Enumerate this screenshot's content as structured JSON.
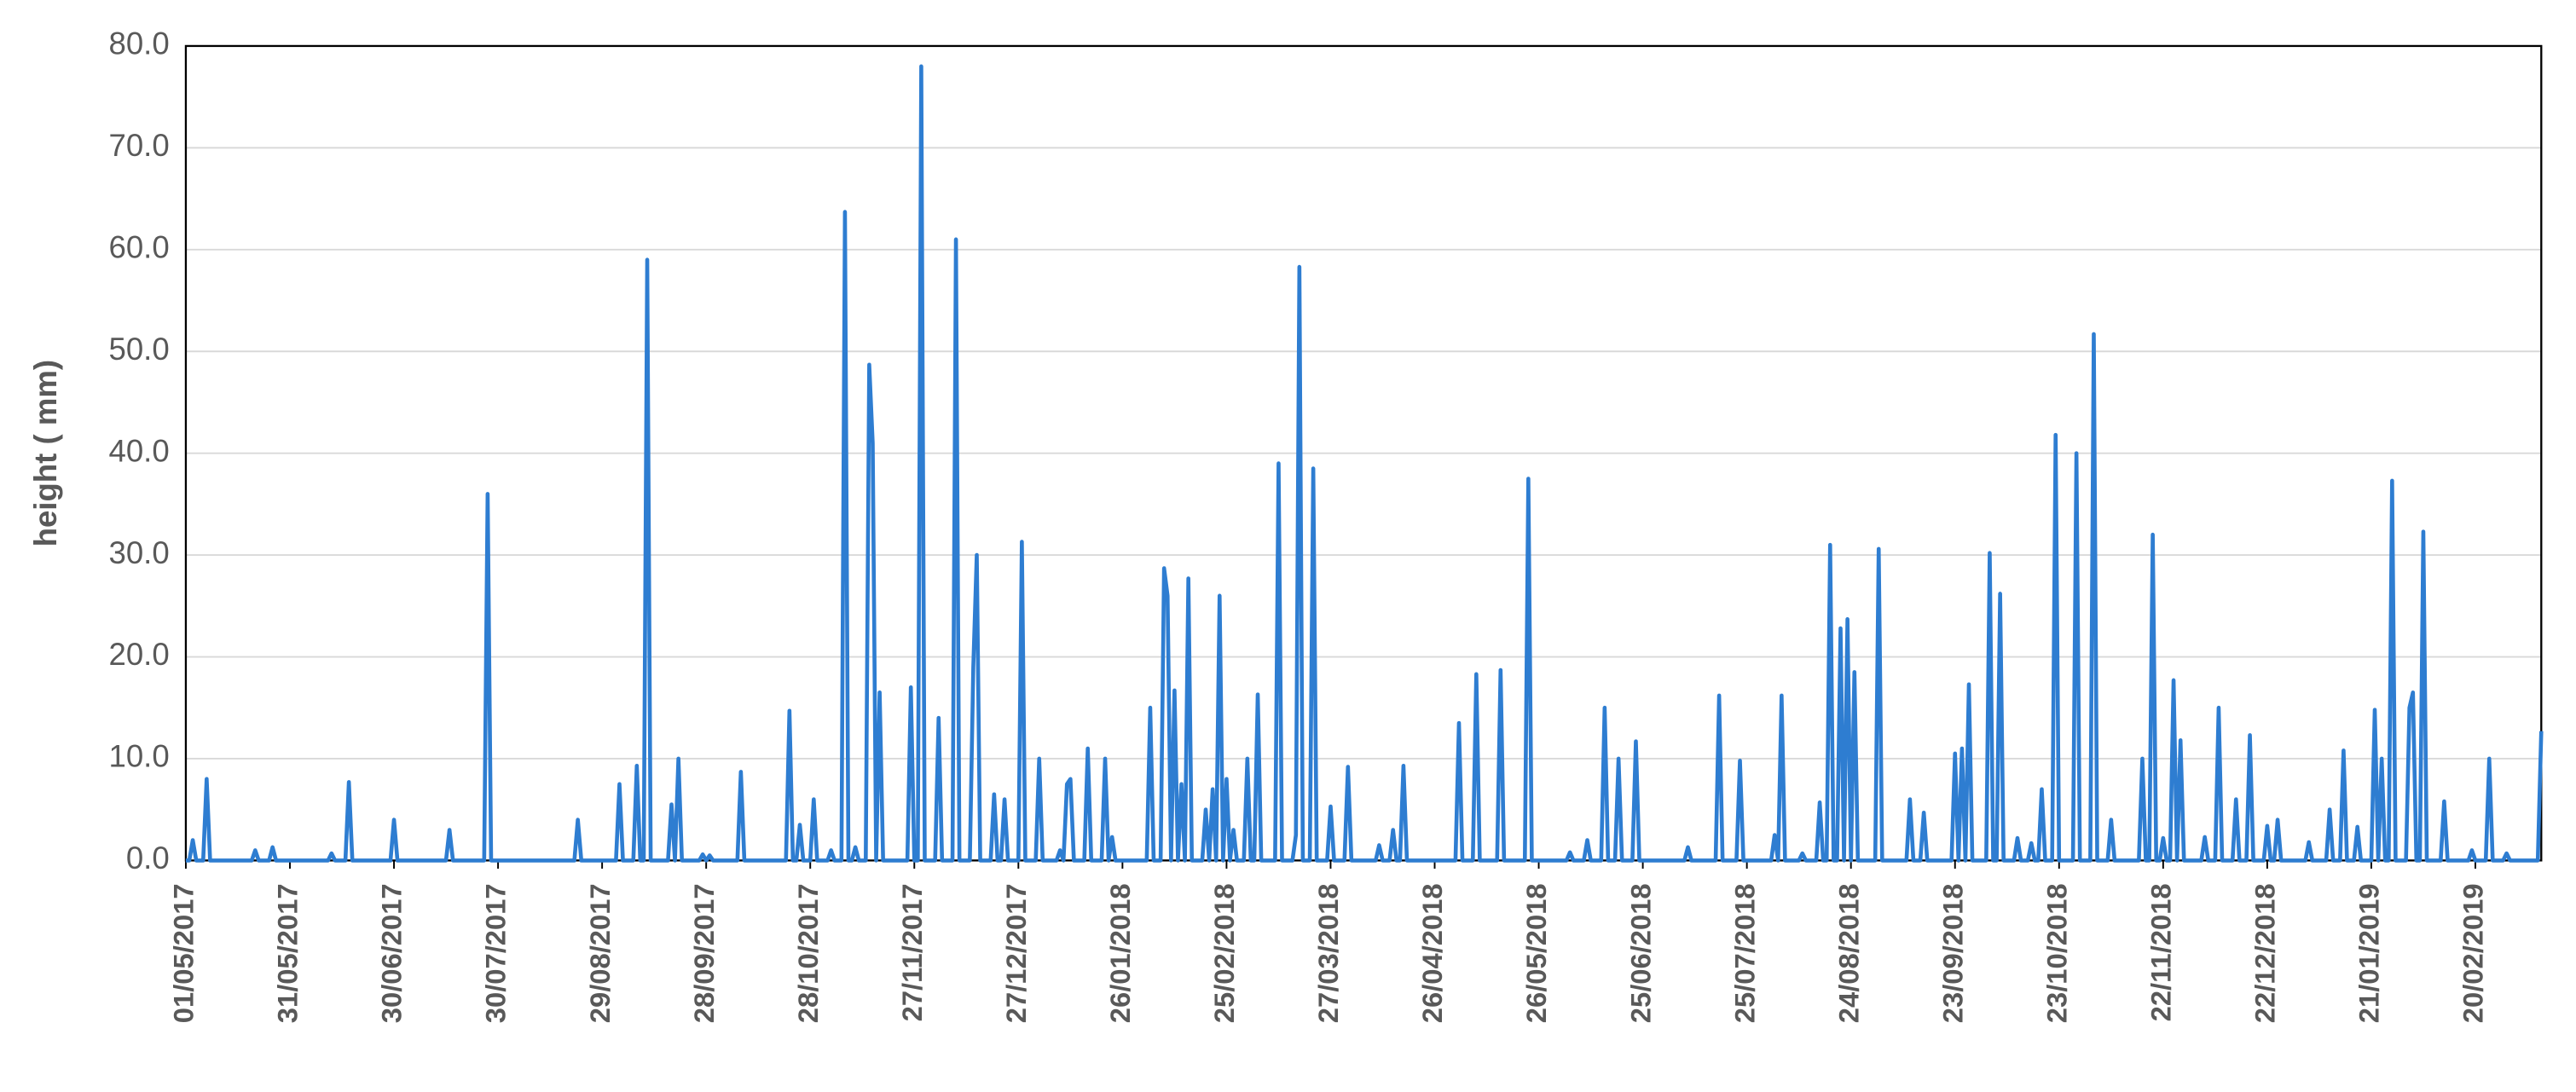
{
  "chart_data": {
    "type": "line",
    "y_label": "height ( mm)",
    "color": "#2e7dd1",
    "grid": true,
    "ylim": [
      0,
      80
    ],
    "yticks": [
      {
        "value": 0,
        "label": "0.0"
      },
      {
        "value": 10,
        "label": "10.0"
      },
      {
        "value": 20,
        "label": "20.0"
      },
      {
        "value": 30,
        "label": "30.0"
      },
      {
        "value": 40,
        "label": "40.0"
      },
      {
        "value": 50,
        "label": "50.0"
      },
      {
        "value": 60,
        "label": "60.0"
      },
      {
        "value": 70,
        "label": "70.0"
      },
      {
        "value": 80,
        "label": "80.0"
      }
    ],
    "xlim": [
      "01/05/2017",
      "11/03/2019"
    ],
    "xticks": [
      "01/05/2017",
      "31/05/2017",
      "30/06/2017",
      "30/07/2017",
      "29/08/2017",
      "28/09/2017",
      "28/10/2017",
      "27/11/2017",
      "27/12/2017",
      "26/01/2018",
      "25/02/2018",
      "27/03/2018",
      "26/04/2018",
      "26/05/2018",
      "25/06/2018",
      "25/07/2018",
      "24/08/2018",
      "23/09/2018",
      "23/10/2018",
      "22/11/2018",
      "22/12/2018",
      "21/01/2019",
      "20/02/2019"
    ],
    "x": [
      "01/05/2017",
      "02/05/2017",
      "03/05/2017",
      "04/05/2017",
      "06/05/2017",
      "07/05/2017",
      "08/05/2017",
      "20/05/2017",
      "21/05/2017",
      "22/05/2017",
      "25/05/2017",
      "26/05/2017",
      "27/05/2017",
      "11/06/2017",
      "12/06/2017",
      "13/06/2017",
      "16/06/2017",
      "17/06/2017",
      "18/06/2017",
      "29/06/2017",
      "30/06/2017",
      "01/07/2017",
      "15/07/2017",
      "16/07/2017",
      "17/07/2017",
      "26/07/2017",
      "27/07/2017",
      "28/07/2017",
      "21/08/2017",
      "22/08/2017",
      "23/08/2017",
      "02/09/2017",
      "03/09/2017",
      "04/09/2017",
      "07/09/2017",
      "08/09/2017",
      "09/09/2017",
      "10/09/2017",
      "11/09/2017",
      "12/09/2017",
      "17/09/2017",
      "18/09/2017",
      "19/09/2017",
      "20/09/2017",
      "21/09/2017",
      "26/09/2017",
      "27/09/2017",
      "28/09/2017",
      "29/09/2017",
      "30/09/2017",
      "07/10/2017",
      "08/10/2017",
      "09/10/2017",
      "21/10/2017",
      "22/10/2017",
      "23/10/2017",
      "24/10/2017",
      "25/10/2017",
      "26/10/2017",
      "28/10/2017",
      "29/10/2017",
      "30/10/2017",
      "02/11/2017",
      "03/11/2017",
      "04/11/2017",
      "06/11/2017",
      "07/11/2017",
      "08/11/2017",
      "09/11/2017",
      "10/11/2017",
      "11/11/2017",
      "13/11/2017",
      "14/11/2017",
      "15/11/2017",
      "16/11/2017",
      "17/11/2017",
      "18/11/2017",
      "25/11/2017",
      "26/11/2017",
      "27/11/2017",
      "28/11/2017",
      "29/11/2017",
      "30/11/2017",
      "03/12/2017",
      "04/12/2017",
      "05/12/2017",
      "08/12/2017",
      "09/12/2017",
      "10/12/2017",
      "13/12/2017",
      "14/12/2017",
      "15/12/2017",
      "16/12/2017",
      "19/12/2017",
      "20/12/2017",
      "21/12/2017",
      "22/12/2017",
      "23/12/2017",
      "24/12/2017",
      "27/12/2017",
      "28/12/2017",
      "29/12/2017",
      "01/01/2018",
      "02/01/2018",
      "03/01/2018",
      "07/01/2018",
      "08/01/2018",
      "09/01/2018",
      "10/01/2018",
      "11/01/2018",
      "12/01/2018",
      "15/01/2018",
      "16/01/2018",
      "17/01/2018",
      "20/01/2018",
      "21/01/2018",
      "22/01/2018",
      "23/01/2018",
      "24/01/2018",
      "02/02/2018",
      "03/02/2018",
      "04/02/2018",
      "06/02/2018",
      "07/02/2018",
      "08/02/2018",
      "09/02/2018",
      "10/02/2018",
      "11/02/2018",
      "12/02/2018",
      "13/02/2018",
      "14/02/2018",
      "15/02/2018",
      "18/02/2018",
      "19/02/2018",
      "20/02/2018",
      "21/02/2018",
      "22/02/2018",
      "23/02/2018",
      "24/02/2018",
      "25/02/2018",
      "26/02/2018",
      "27/02/2018",
      "28/02/2018",
      "02/03/2018",
      "03/03/2018",
      "04/03/2018",
      "05/03/2018",
      "06/03/2018",
      "07/03/2018",
      "11/03/2018",
      "12/03/2018",
      "13/03/2018",
      "16/03/2018",
      "17/03/2018",
      "18/03/2018",
      "19/03/2018",
      "21/03/2018",
      "22/03/2018",
      "23/03/2018",
      "26/03/2018",
      "27/03/2018",
      "28/03/2018",
      "31/03/2018",
      "01/04/2018",
      "02/04/2018",
      "09/04/2018",
      "10/04/2018",
      "11/04/2018",
      "13/04/2018",
      "14/04/2018",
      "15/04/2018",
      "16/04/2018",
      "17/04/2018",
      "18/04/2018",
      "02/05/2018",
      "03/05/2018",
      "04/05/2018",
      "07/05/2018",
      "08/05/2018",
      "09/05/2018",
      "14/05/2018",
      "15/05/2018",
      "16/05/2018",
      "22/05/2018",
      "23/05/2018",
      "24/05/2018",
      "03/06/2018",
      "04/06/2018",
      "05/06/2018",
      "08/06/2018",
      "09/06/2018",
      "10/06/2018",
      "13/06/2018",
      "14/06/2018",
      "15/06/2018",
      "17/06/2018",
      "18/06/2018",
      "19/06/2018",
      "22/06/2018",
      "23/06/2018",
      "24/06/2018",
      "07/07/2018",
      "08/07/2018",
      "09/07/2018",
      "16/07/2018",
      "17/07/2018",
      "18/07/2018",
      "22/07/2018",
      "23/07/2018",
      "24/07/2018",
      "01/08/2018",
      "02/08/2018",
      "03/08/2018",
      "04/08/2018",
      "05/08/2018",
      "09/08/2018",
      "10/08/2018",
      "11/08/2018",
      "14/08/2018",
      "15/08/2018",
      "16/08/2018",
      "17/08/2018",
      "18/08/2018",
      "19/08/2018",
      "20/08/2018",
      "21/08/2018",
      "22/08/2018",
      "23/08/2018",
      "24/08/2018",
      "25/08/2018",
      "26/08/2018",
      "31/08/2018",
      "01/09/2018",
      "02/09/2018",
      "09/09/2018",
      "10/09/2018",
      "11/09/2018",
      "13/09/2018",
      "14/09/2018",
      "15/09/2018",
      "22/09/2018",
      "23/09/2018",
      "24/09/2018",
      "25/09/2018",
      "26/09/2018",
      "27/09/2018",
      "28/09/2018",
      "02/10/2018",
      "03/10/2018",
      "04/10/2018",
      "05/10/2018",
      "06/10/2018",
      "07/10/2018",
      "10/10/2018",
      "11/10/2018",
      "12/10/2018",
      "14/10/2018",
      "15/10/2018",
      "16/10/2018",
      "17/10/2018",
      "18/10/2018",
      "19/10/2018",
      "21/10/2018",
      "22/10/2018",
      "23/10/2018",
      "27/10/2018",
      "28/10/2018",
      "29/10/2018",
      "01/11/2018",
      "02/11/2018",
      "03/11/2018",
      "06/11/2018",
      "07/11/2018",
      "08/11/2018",
      "15/11/2018",
      "16/11/2018",
      "17/11/2018",
      "18/11/2018",
      "19/11/2018",
      "20/11/2018",
      "21/11/2018",
      "22/11/2018",
      "23/11/2018",
      "24/11/2018",
      "25/11/2018",
      "26/11/2018",
      "27/11/2018",
      "28/11/2018",
      "03/12/2018",
      "04/12/2018",
      "05/12/2018",
      "07/12/2018",
      "08/12/2018",
      "09/12/2018",
      "12/12/2018",
      "13/12/2018",
      "14/12/2018",
      "16/12/2018",
      "17/12/2018",
      "18/12/2018",
      "21/12/2018",
      "22/12/2018",
      "23/12/2018",
      "24/12/2018",
      "25/12/2018",
      "26/12/2018",
      "02/01/2019",
      "03/01/2019",
      "04/01/2019",
      "08/01/2019",
      "09/01/2019",
      "10/01/2019",
      "12/01/2019",
      "13/01/2019",
      "14/01/2019",
      "16/01/2019",
      "17/01/2019",
      "18/01/2019",
      "21/01/2019",
      "22/01/2019",
      "23/01/2019",
      "24/01/2019",
      "25/01/2019",
      "26/01/2019",
      "27/01/2019",
      "28/01/2019",
      "31/01/2019",
      "01/02/2019",
      "02/02/2019",
      "03/02/2019",
      "04/02/2019",
      "05/02/2019",
      "06/02/2019",
      "10/02/2019",
      "11/02/2019",
      "12/02/2019",
      "18/02/2019",
      "19/02/2019",
      "20/02/2019",
      "23/02/2019",
      "24/02/2019",
      "25/02/2019",
      "28/02/2019",
      "01/03/2019",
      "02/03/2019",
      "10/03/2019",
      "11/03/2019"
    ],
    "values": [
      0,
      0,
      2,
      0,
      0,
      8,
      0,
      0,
      1,
      0,
      0,
      1.3,
      0,
      0,
      0.7,
      0,
      0,
      7.7,
      0,
      0,
      4,
      0,
      0,
      3,
      0,
      0,
      36,
      0,
      0,
      4,
      0,
      0,
      7.5,
      0,
      0,
      9.3,
      0,
      0,
      59,
      0,
      0,
      5.5,
      0,
      10,
      0,
      0,
      0.6,
      0,
      0.5,
      0,
      0,
      8.7,
      0,
      0,
      14.7,
      0,
      0,
      3.5,
      0,
      0,
      6,
      0,
      0,
      1,
      0,
      0,
      63.7,
      0,
      0,
      1.3,
      0,
      0,
      48.7,
      41,
      0,
      16.5,
      0,
      0,
      17,
      0,
      0,
      78,
      0,
      0,
      14,
      0,
      0,
      61,
      0,
      0,
      19,
      30,
      0,
      0,
      6.5,
      0,
      0,
      6,
      0,
      0,
      31.3,
      0,
      0,
      10,
      0,
      0,
      1,
      0,
      7.5,
      8,
      0,
      0,
      11,
      0,
      0,
      10,
      0,
      2.3,
      0,
      0,
      15,
      0,
      0,
      28.7,
      26,
      0,
      16.7,
      0,
      7.5,
      0,
      27.7,
      0,
      0,
      5,
      0,
      7,
      0,
      26,
      0,
      8,
      0,
      3,
      0,
      0,
      10,
      0,
      0,
      16.3,
      0,
      0,
      39,
      0,
      0,
      2.5,
      58.3,
      0,
      0,
      38.5,
      0,
      0,
      5.3,
      0,
      0,
      9.2,
      0,
      0,
      1.5,
      0,
      0,
      3,
      0,
      0,
      9.3,
      0,
      0,
      13.5,
      0,
      0,
      18.3,
      0,
      0,
      18.7,
      0,
      0,
      37.5,
      0,
      0,
      0.8,
      0,
      0,
      2,
      0,
      0,
      15,
      0,
      0,
      10,
      0,
      0,
      11.7,
      0,
      0,
      1.3,
      0,
      0,
      16.2,
      0,
      0,
      9.8,
      0,
      0,
      2.5,
      0,
      16.2,
      0,
      0,
      0.7,
      0,
      0,
      5.7,
      0,
      0,
      31,
      0,
      0,
      22.8,
      0,
      23.7,
      0,
      18.5,
      0,
      0,
      30.6,
      0,
      0,
      6,
      0,
      0,
      4.7,
      0,
      0,
      10.5,
      0,
      11,
      0,
      17.3,
      0,
      0,
      30.2,
      0,
      0,
      26.2,
      0,
      0,
      2.2,
      0,
      0,
      1.7,
      0,
      0,
      7,
      0,
      0,
      41.8,
      0,
      0,
      40,
      0,
      0,
      51.7,
      0,
      0,
      4,
      0,
      0,
      10,
      0,
      0,
      32,
      0,
      0,
      2.2,
      0,
      0,
      17.7,
      0,
      11.8,
      0,
      0,
      2.3,
      0,
      0,
      15,
      0,
      0,
      6,
      0,
      0,
      12.3,
      0,
      0,
      3.4,
      0,
      0,
      4,
      0,
      0,
      1.8,
      0,
      0,
      5,
      0,
      0,
      10.8,
      0,
      0,
      3.3,
      0,
      0,
      14.8,
      0,
      10,
      0,
      0,
      37.3,
      0,
      0,
      15,
      16.5,
      0,
      0,
      32.3,
      0,
      0,
      5.8,
      0,
      0,
      1,
      0,
      0,
      10,
      0,
      0,
      0.7,
      0,
      0,
      12.7
    ]
  }
}
